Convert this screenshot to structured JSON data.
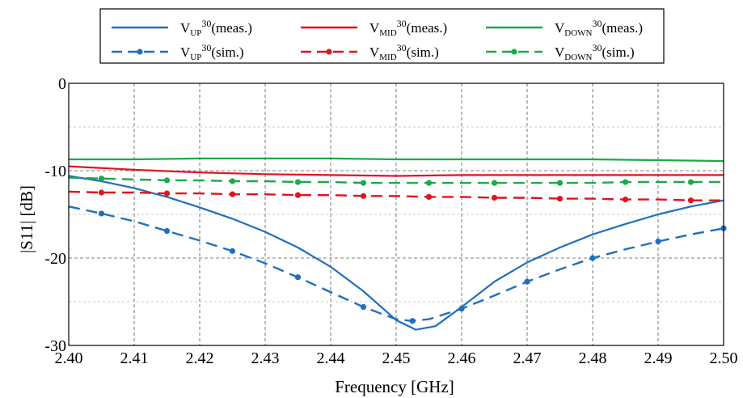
{
  "chart_data": {
    "type": "line",
    "title": "",
    "xlabel": "Frequency [GHz]",
    "ylabel": "|S11| [dB]",
    "xlim": [
      2.4,
      2.5
    ],
    "ylim": [
      -30,
      0
    ],
    "x_ticks": [
      "2.40",
      "2.41",
      "2.42",
      "2.43",
      "2.44",
      "2.45",
      "2.46",
      "2.47",
      "2.48",
      "2.49",
      "2.50"
    ],
    "y_ticks": [
      "0",
      "-10",
      "-20",
      "-30"
    ],
    "grid": "major dashed dark, minor dashed light",
    "legend_position": "top, outside plot, 3 columns",
    "series": [
      {
        "name": "meas.",
        "base": "V",
        "sub": "UP",
        "sup": "30",
        "color": "#1f6fbf",
        "style": "solid",
        "markers": false,
        "x": [
          2.4,
          2.405,
          2.41,
          2.415,
          2.42,
          2.425,
          2.43,
          2.435,
          2.44,
          2.445,
          2.45,
          2.453,
          2.456,
          2.46,
          2.465,
          2.47,
          2.475,
          2.48,
          2.485,
          2.49,
          2.495,
          2.5
        ],
        "y": [
          -10.6,
          -11.2,
          -12.0,
          -13.0,
          -14.2,
          -15.5,
          -17.0,
          -18.8,
          -21.0,
          -23.8,
          -27.1,
          -28.2,
          -27.8,
          -25.6,
          -22.7,
          -20.5,
          -18.8,
          -17.3,
          -16.1,
          -15.0,
          -14.1,
          -13.4
        ]
      },
      {
        "name": "meas.",
        "base": "V",
        "sub": "MID",
        "sup": "30",
        "color": "#e0141e",
        "style": "solid",
        "markers": false,
        "x": [
          2.4,
          2.41,
          2.42,
          2.43,
          2.44,
          2.45,
          2.46,
          2.47,
          2.48,
          2.49,
          2.5
        ],
        "y": [
          -9.5,
          -9.9,
          -10.2,
          -10.4,
          -10.5,
          -10.6,
          -10.5,
          -10.5,
          -10.5,
          -10.5,
          -10.5
        ]
      },
      {
        "name": "meas.",
        "base": "V",
        "sub": "DOWN",
        "sup": "30",
        "color": "#1aaa4a",
        "style": "solid",
        "markers": false,
        "x": [
          2.4,
          2.41,
          2.42,
          2.43,
          2.44,
          2.45,
          2.46,
          2.47,
          2.48,
          2.49,
          2.5
        ],
        "y": [
          -8.7,
          -8.7,
          -8.6,
          -8.6,
          -8.6,
          -8.7,
          -8.7,
          -8.7,
          -8.7,
          -8.8,
          -8.9
        ]
      },
      {
        "name": "sim.",
        "base": "V",
        "sub": "UP",
        "sup": "30",
        "color": "#1f6fbf",
        "style": "dashed",
        "markers": true,
        "x": [
          2.4,
          2.405,
          2.41,
          2.415,
          2.42,
          2.425,
          2.43,
          2.435,
          2.44,
          2.445,
          2.45,
          2.4525,
          2.455,
          2.46,
          2.465,
          2.47,
          2.475,
          2.48,
          2.485,
          2.49,
          2.495,
          2.5
        ],
        "y": [
          -14.1,
          -14.9,
          -15.8,
          -16.9,
          -18.0,
          -19.2,
          -20.6,
          -22.2,
          -23.9,
          -25.6,
          -27.0,
          -27.2,
          -27.0,
          -25.8,
          -24.3,
          -22.7,
          -21.3,
          -20.0,
          -19.0,
          -18.1,
          -17.3,
          -16.6
        ]
      },
      {
        "name": "sim.",
        "base": "V",
        "sub": "MID",
        "sup": "30",
        "color": "#e0141e",
        "style": "dashed",
        "markers": true,
        "x": [
          2.4,
          2.405,
          2.41,
          2.415,
          2.42,
          2.425,
          2.43,
          2.435,
          2.44,
          2.445,
          2.45,
          2.455,
          2.46,
          2.465,
          2.47,
          2.475,
          2.48,
          2.485,
          2.49,
          2.495,
          2.5
        ],
        "y": [
          -12.4,
          -12.5,
          -12.5,
          -12.6,
          -12.6,
          -12.7,
          -12.7,
          -12.8,
          -12.8,
          -12.9,
          -12.9,
          -13.0,
          -13.0,
          -13.1,
          -13.1,
          -13.2,
          -13.2,
          -13.3,
          -13.3,
          -13.4,
          -13.4
        ]
      },
      {
        "name": "sim.",
        "base": "V",
        "sub": "DOWN",
        "sup": "30",
        "color": "#1aaa4a",
        "style": "dashed",
        "markers": true,
        "x": [
          2.4,
          2.405,
          2.41,
          2.415,
          2.42,
          2.425,
          2.43,
          2.435,
          2.44,
          2.445,
          2.45,
          2.455,
          2.46,
          2.465,
          2.47,
          2.475,
          2.48,
          2.485,
          2.49,
          2.495,
          2.5
        ],
        "y": [
          -10.8,
          -10.9,
          -11.0,
          -11.1,
          -11.1,
          -11.2,
          -11.2,
          -11.3,
          -11.3,
          -11.4,
          -11.4,
          -11.4,
          -11.4,
          -11.4,
          -11.4,
          -11.4,
          -11.4,
          -11.3,
          -11.3,
          -11.3,
          -11.3
        ]
      }
    ]
  }
}
